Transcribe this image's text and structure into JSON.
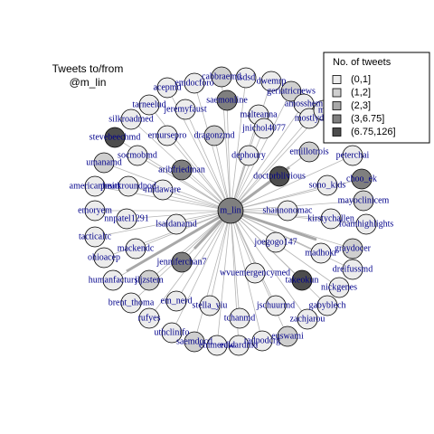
{
  "title": [
    "Tweets to/from",
    "@m_lin"
  ],
  "legend": {
    "title": "No. of tweets",
    "entries": [
      {
        "label": "(0,1]",
        "color": "#ececec"
      },
      {
        "label": "(1,2]",
        "color": "#cfcfcf"
      },
      {
        "label": "(2,3]",
        "color": "#a8a8a8"
      },
      {
        "label": "(3,6.75]",
        "color": "#7f7f7f"
      },
      {
        "label": "(6.75,126]",
        "color": "#4d4d4d"
      }
    ]
  },
  "center": {
    "label": "m_lin",
    "group": "(3,6.75]"
  },
  "nodes": [
    {
      "label": "acepmd",
      "group": "(0,1]"
    },
    {
      "label": "emdocforo",
      "group": "(0,1]"
    },
    {
      "label": "cabbraemd",
      "group": "(1,2]"
    },
    {
      "label": "isdsd",
      "group": "(0,1]"
    },
    {
      "label": "dwemrp",
      "group": "(0,1]"
    },
    {
      "label": "geriatricnews",
      "group": "(1,2]"
    },
    {
      "label": "amosshem",
      "group": "(0,1]"
    },
    {
      "label": "mostlyd",
      "group": "(0,1]"
    },
    {
      "label": "mc",
      "group": "(0,1]"
    },
    {
      "label": "tarneelud",
      "group": "(0,1]"
    },
    {
      "label": "jeremyfaust",
      "group": "(0,1]"
    },
    {
      "label": "saemonline",
      "group": "(3,6.75]"
    },
    {
      "label": "malteanna",
      "group": "(0,1]"
    },
    {
      "label": "jnichol4077",
      "group": "(0,1]"
    },
    {
      "label": "silkroadmed",
      "group": "(0,1]"
    },
    {
      "label": "ernursepro",
      "group": "(0,1]"
    },
    {
      "label": "dragonzmd",
      "group": "(1,2]"
    },
    {
      "label": "stevebeechmd",
      "group": "(6.75,126]"
    },
    {
      "label": "socmobmd",
      "group": "(0,1]"
    },
    {
      "label": "emillotrois",
      "group": "(1,2]"
    },
    {
      "label": "peterchai",
      "group": "(0,1]"
    },
    {
      "label": "umanamd",
      "group": "(1,2]"
    },
    {
      "label": "dephoury",
      "group": "(0,1]"
    },
    {
      "label": "aribfriedman",
      "group": "(3,6.75]"
    },
    {
      "label": "doctorblivious",
      "group": "(6.75,126]"
    },
    {
      "label": "choo_ek",
      "group": "(3,6.75]"
    },
    {
      "label": "sono_kids",
      "group": "(0,1]"
    },
    {
      "label": "americanheart",
      "group": "(0,1]"
    },
    {
      "label": "pmitkroundpod",
      "group": "(0,1]"
    },
    {
      "label": "rmdaware",
      "group": "(0,1]"
    },
    {
      "label": "mayoclinicem",
      "group": "(1,2]"
    },
    {
      "label": "shannonomac",
      "group": "(0,1]"
    },
    {
      "label": "kirstychallen",
      "group": "(0,1]"
    },
    {
      "label": "foamhighlights",
      "group": "(0,1]"
    },
    {
      "label": "emoryem",
      "group": "(0,1]"
    },
    {
      "label": "nnpatel1291",
      "group": "(0,1]"
    },
    {
      "label": "lsaldanamd",
      "group": "(0,1]"
    },
    {
      "label": "joegogo147",
      "group": "(0,1]"
    },
    {
      "label": "tacticaltc",
      "group": "(0,1]"
    },
    {
      "label": "mackendc",
      "group": "(0,1]"
    },
    {
      "label": "madhokr",
      "group": "(0,1]"
    },
    {
      "label": "graydocer",
      "group": "(1,2]"
    },
    {
      "label": "ohioacep",
      "group": "(0,1]"
    },
    {
      "label": "jenniferchan7",
      "group": "(3,6.75]"
    },
    {
      "label": "dreifussmd",
      "group": "(0,1]"
    },
    {
      "label": "humanfacturs",
      "group": "(0,1]"
    },
    {
      "label": "jljzstem",
      "group": "(1,2]"
    },
    {
      "label": "wvuemergencymed",
      "group": "(0,1]"
    },
    {
      "label": "takeokun",
      "group": "(6.75,126]"
    },
    {
      "label": "nickgenes",
      "group": "(0,1]"
    },
    {
      "label": "brent_thoma",
      "group": "(0,1]"
    },
    {
      "label": "em_nerd",
      "group": "(0,1]"
    },
    {
      "label": "stella_yiu",
      "group": "(0,1]"
    },
    {
      "label": "jschuurmd",
      "group": "(0,1]"
    },
    {
      "label": "gabyblech",
      "group": "(0,1]"
    },
    {
      "label": "rufyes",
      "group": "(0,1]"
    },
    {
      "label": "tchanmd",
      "group": "(0,1]"
    },
    {
      "label": "zachjarou",
      "group": "(0,1]"
    },
    {
      "label": "uthclinifo",
      "group": "(0,1]"
    },
    {
      "label": "saemdocd",
      "group": "(1,2]"
    },
    {
      "label": "emmerald",
      "group": "(0,1]"
    },
    {
      "label": "edwardmd",
      "group": "(0,1]"
    },
    {
      "label": "radpodcrg",
      "group": "(0,1]"
    },
    {
      "label": "euswami",
      "group": "(1,2]"
    }
  ]
}
